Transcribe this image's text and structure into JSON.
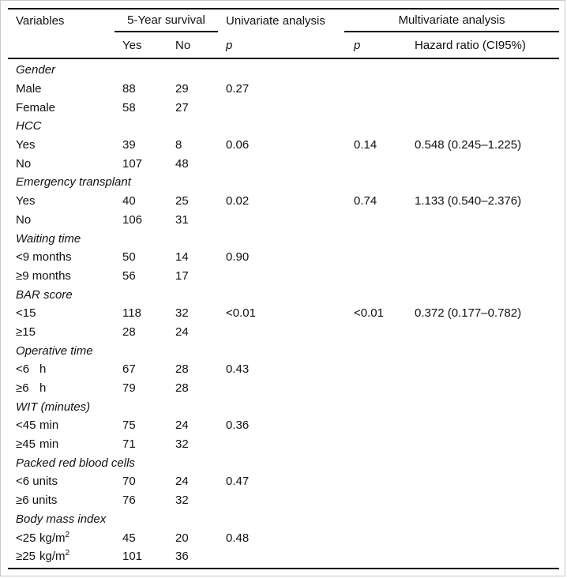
{
  "colors": {
    "background": "#ffffff",
    "text": "#111111",
    "rule": "#000000",
    "frame": "#c9c9c9"
  },
  "table": {
    "header": {
      "variables": "Variables",
      "survival_group": "5-Year survival",
      "survival_yes": "Yes",
      "survival_no": "No",
      "univariate_group": "Univariate analysis",
      "univariate_p": "p",
      "multivariate_group": "Multivariate analysis",
      "multivariate_p": "p",
      "hazard_ratio": "Hazard ratio (CI95%)"
    },
    "rows": [
      {
        "type": "group",
        "label": "Gender"
      },
      {
        "type": "data",
        "label": "Male",
        "yes": "88",
        "no": "29",
        "p_uni": "0.27",
        "p_multi": "",
        "hr": ""
      },
      {
        "type": "data",
        "label": "Female",
        "yes": "58",
        "no": "27",
        "p_uni": "",
        "p_multi": "",
        "hr": ""
      },
      {
        "type": "group",
        "label": "HCC"
      },
      {
        "type": "data",
        "label": "Yes",
        "yes": "39",
        "no": "8",
        "p_uni": "0.06",
        "p_multi": "0.14",
        "hr": "0.548 (0.245–1.225)"
      },
      {
        "type": "data",
        "label": "No",
        "yes": "107",
        "no": "48",
        "p_uni": "",
        "p_multi": "",
        "hr": ""
      },
      {
        "type": "group",
        "label": "Emergency transplant"
      },
      {
        "type": "data",
        "label": "Yes",
        "yes": "40",
        "no": "25",
        "p_uni": "0.02",
        "p_multi": "0.74",
        "hr": "1.133 (0.540–2.376)"
      },
      {
        "type": "data",
        "label": "No",
        "yes": "106",
        "no": "31",
        "p_uni": "",
        "p_multi": "",
        "hr": ""
      },
      {
        "type": "group",
        "label": "Waiting time"
      },
      {
        "type": "data",
        "label": "<9 months",
        "yes": "50",
        "no": "14",
        "p_uni": "0.90",
        "p_multi": "",
        "hr": ""
      },
      {
        "type": "data",
        "label": "≥9 months",
        "yes": "56",
        "no": "17",
        "p_uni": "",
        "p_multi": "",
        "hr": ""
      },
      {
        "type": "group",
        "label": "BAR score"
      },
      {
        "type": "data",
        "label": "<15",
        "yes": "118",
        "no": "32",
        "p_uni": "<0.01",
        "p_multi": "<0.01",
        "hr": "0.372 (0.177–0.782)"
      },
      {
        "type": "data",
        "label": "≥15",
        "yes": "28",
        "no": "24",
        "p_uni": "",
        "p_multi": "",
        "hr": ""
      },
      {
        "type": "group",
        "label": "Operative time"
      },
      {
        "type": "data",
        "label": "<6",
        "unit": "h",
        "yes": "67",
        "no": "28",
        "p_uni": "0.43",
        "p_multi": "",
        "hr": ""
      },
      {
        "type": "data",
        "label": "≥6",
        "unit": "h",
        "yes": "79",
        "no": "28",
        "p_uni": "",
        "p_multi": "",
        "hr": ""
      },
      {
        "type": "group",
        "label": "WIT (minutes)"
      },
      {
        "type": "data",
        "label": "<45",
        "unit": "min",
        "yes": "75",
        "no": "24",
        "p_uni": "0.36",
        "p_multi": "",
        "hr": ""
      },
      {
        "type": "data",
        "label": "≥45",
        "unit": "min",
        "yes": "71",
        "no": "32",
        "p_uni": "",
        "p_multi": "",
        "hr": ""
      },
      {
        "type": "group",
        "label": "Packed red blood cells"
      },
      {
        "type": "data",
        "label": "<6 units",
        "yes": "70",
        "no": "24",
        "p_uni": "0.47",
        "p_multi": "",
        "hr": ""
      },
      {
        "type": "data",
        "label": "≥6 units",
        "yes": "76",
        "no": "32",
        "p_uni": "",
        "p_multi": "",
        "hr": ""
      },
      {
        "type": "group",
        "label": "Body mass index"
      },
      {
        "type": "data",
        "label": "<25",
        "unit": "kg/m",
        "unit_sup": "2",
        "yes": "45",
        "no": "20",
        "p_uni": "0.48",
        "p_multi": "",
        "hr": ""
      },
      {
        "type": "data",
        "label": "≥25",
        "unit": "kg/m",
        "unit_sup": "2",
        "yes": "101",
        "no": "36",
        "p_uni": "",
        "p_multi": "",
        "hr": ""
      }
    ]
  }
}
